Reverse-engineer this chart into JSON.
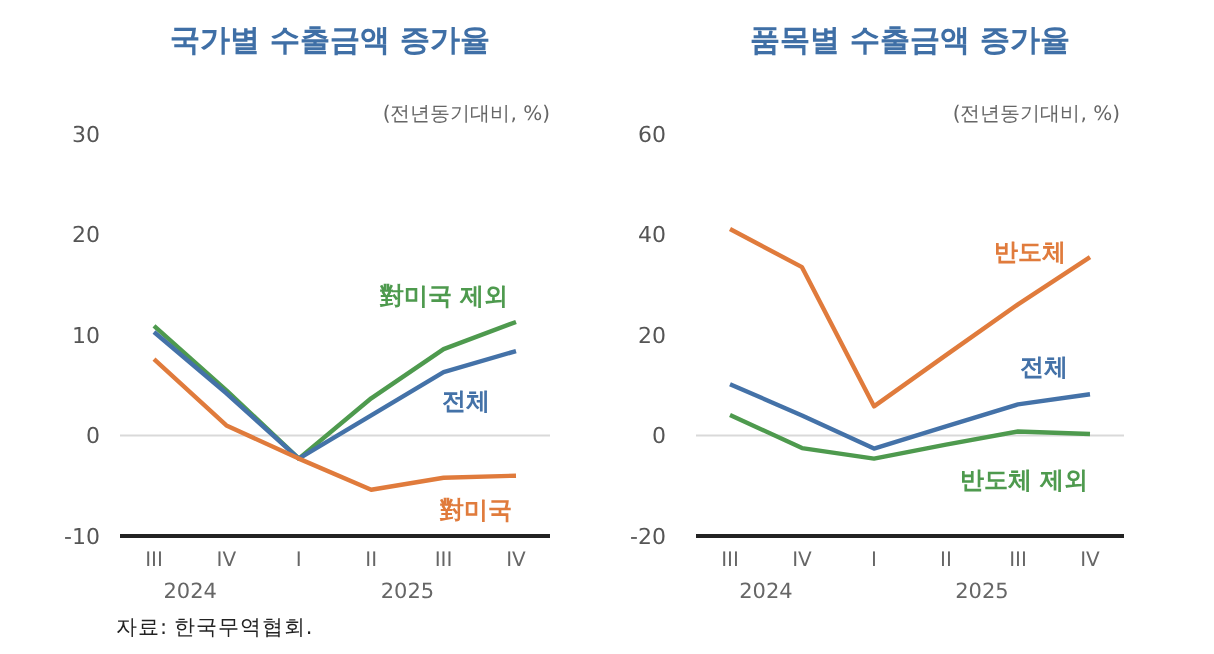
{
  "chart_data": [
    {
      "type": "line",
      "title": "국가별 수출금액 증가율",
      "ylabel": "(전년동기대비, %)",
      "categories": [
        "III",
        "IV",
        "I",
        "II",
        "III",
        "IV"
      ],
      "ylim": [
        -10,
        30
      ],
      "yticks": [
        -10,
        0,
        10,
        20,
        30
      ],
      "grid": false,
      "ref_lines": [
        {
          "axis": "y",
          "value": 0,
          "color": "#d9d9d9"
        }
      ],
      "series": [
        {
          "name": "對미국 제외",
          "color": "#4e9a4e",
          "values": [
            10.9,
            4.5,
            -2.3,
            3.7,
            8.6,
            11.3
          ]
        },
        {
          "name": "전체",
          "color": "#4472a8",
          "values": [
            10.3,
            4.2,
            -2.3,
            2.0,
            6.3,
            8.4
          ]
        },
        {
          "name": "對미국",
          "color": "#e07b3c",
          "values": [
            7.6,
            1.0,
            -2.3,
            -5.4,
            -4.2,
            -4.0
          ]
        }
      ],
      "annotations": [
        "2024",
        "2025",
        "자료: 한국무역협회."
      ]
    },
    {
      "type": "line",
      "title": "품목별 수출금액 증가율",
      "ylabel": "(전년동기대비, %)",
      "categories": [
        "III",
        "IV",
        "I",
        "II",
        "III",
        "IV"
      ],
      "ylim": [
        -20,
        60
      ],
      "yticks": [
        -20,
        0,
        20,
        40,
        60
      ],
      "grid": false,
      "ref_lines": [
        {
          "axis": "y",
          "value": 0,
          "color": "#d9d9d9"
        }
      ],
      "series": [
        {
          "name": "반도체",
          "color": "#e07b3c",
          "values": [
            41.1,
            33.5,
            5.8,
            16.0,
            26.1,
            35.5
          ]
        },
        {
          "name": "전체",
          "color": "#4472a8",
          "values": [
            10.2,
            4.0,
            -2.6,
            1.8,
            6.2,
            8.2
          ]
        },
        {
          "name": "반도체 제외",
          "color": "#4e9a4e",
          "values": [
            4.1,
            -2.5,
            -4.6,
            -1.8,
            0.8,
            0.3
          ]
        }
      ],
      "annotations": [
        "2024",
        "2025"
      ]
    }
  ]
}
